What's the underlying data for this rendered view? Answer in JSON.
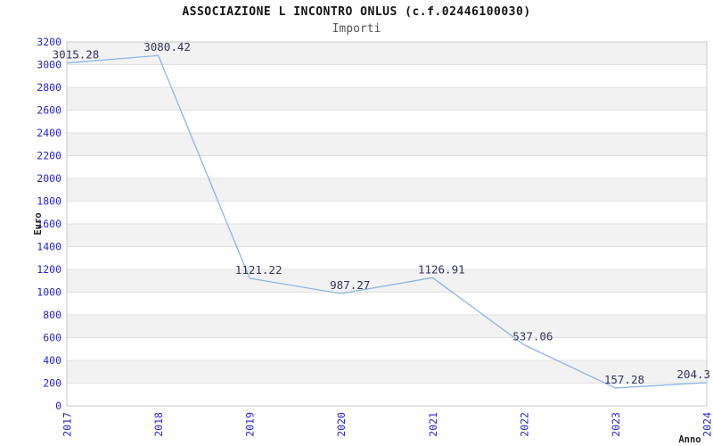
{
  "header": {
    "title": "ASSOCIAZIONE L INCONTRO ONLUS (c.f.02446100030)",
    "subtitle": "Importi"
  },
  "chart_data": {
    "type": "line",
    "title": "ASSOCIAZIONE L INCONTRO ONLUS (c.f.02446100030)",
    "subtitle": "Importi",
    "xlabel": "Anno",
    "ylabel": "Euro",
    "categories": [
      "2017",
      "2018",
      "2019",
      "2020",
      "2021",
      "2022",
      "2023",
      "2024"
    ],
    "values": [
      3015.28,
      3080.42,
      1121.22,
      987.27,
      1126.91,
      537.06,
      157.28,
      204.3
    ],
    "value_labels": [
      "3015.28",
      "3080.42",
      "1121.22",
      "987.27",
      "1126.91",
      "537.06",
      "157.28",
      "204.3"
    ],
    "ylim": [
      0,
      3200
    ],
    "ytick_step": 200,
    "grid": true,
    "legend": "none",
    "band_pattern": "alternating",
    "colors": {
      "line": "#8bb6e8",
      "tick_label": "#2525d0",
      "value_label": "#32325e",
      "band": "#f2f2f2",
      "gridline": "#e0e0e0",
      "plot_border": "#c9c9c9",
      "axis_label": "#222222",
      "background": "#ffffff"
    }
  }
}
